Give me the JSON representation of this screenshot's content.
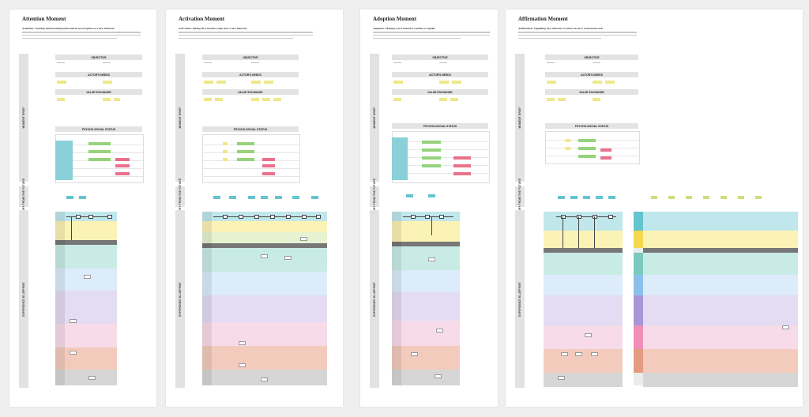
{
  "boards": [
    {
      "title": "Attention Moment",
      "subtitle": "Attention: Noticing and becoming interested in an exception to a new behavior"
    },
    {
      "title": "Activation Moment",
      "subtitle": "Activation: Taking first iterative steps into a new behavior"
    },
    {
      "title": "Adoption Moment",
      "subtitle": "Adoption: Making a new behavior routine or regular"
    },
    {
      "title": "Affirmation Moment",
      "subtitle": "Affirmation: Signalling new behavior to others in one's trusted network"
    }
  ],
  "sections": {
    "objective": "OBJECTIVE",
    "actors_needs": "ACTOR'S NEEDS",
    "value_exchange": "VALUE EXCHANGE",
    "psycho_social": "PSYCHO-SOCIAL STATUS"
  },
  "rails": {
    "moment_brief": "MOMENT BRIEF",
    "story": "STORY FROM THE FUTURE",
    "experience": "EXPERIENCE BLUEPRINT"
  },
  "colors": {
    "lane_1": "#bfe7ec",
    "lane_2": "#fbf2b6",
    "lane_3": "#c9ebe6",
    "lane_4": "#dcecfa",
    "lane_5": "#e3dcf2",
    "lane_6": "#f8dbe9",
    "lane_7": "#f2cbbd",
    "lane_8": "#d6d6d6"
  }
}
